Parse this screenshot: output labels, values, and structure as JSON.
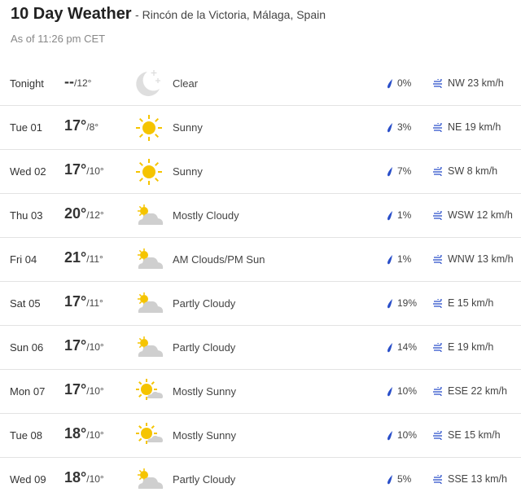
{
  "header": {
    "title": "10 Day Weather",
    "location": "- Rincón de la Victoria, Málaga, Spain",
    "as_of": "As of 11:26 pm CET"
  },
  "colors": {
    "accent": "#2a4fc9",
    "sun": "#f5c400",
    "cloud": "#c8c8c8"
  },
  "days": [
    {
      "day": "Tonight",
      "high": "--",
      "low": "/12°",
      "icon": "moon-clear-icon",
      "condition": "Clear",
      "precip": "0%",
      "wind": "NW 23 km/h"
    },
    {
      "day": "Tue 01",
      "high": "17°",
      "low": "/8°",
      "icon": "sun-icon",
      "condition": "Sunny",
      "precip": "3%",
      "wind": "NE 19 km/h"
    },
    {
      "day": "Wed 02",
      "high": "17°",
      "low": "/10°",
      "icon": "sun-icon",
      "condition": "Sunny",
      "precip": "7%",
      "wind": "SW 8 km/h"
    },
    {
      "day": "Thu 03",
      "high": "20°",
      "low": "/12°",
      "icon": "partly-cloudy-icon",
      "condition": "Mostly Cloudy",
      "precip": "1%",
      "wind": "WSW 12 km/h"
    },
    {
      "day": "Fri 04",
      "high": "21°",
      "low": "/11°",
      "icon": "partly-cloudy-icon",
      "condition": "AM Clouds/PM Sun",
      "precip": "1%",
      "wind": "WNW 13 km/h"
    },
    {
      "day": "Sat 05",
      "high": "17°",
      "low": "/11°",
      "icon": "partly-cloudy-icon",
      "condition": "Partly Cloudy",
      "precip": "19%",
      "wind": "E 15 km/h"
    },
    {
      "day": "Sun 06",
      "high": "17°",
      "low": "/10°",
      "icon": "partly-cloudy-icon",
      "condition": "Partly Cloudy",
      "precip": "14%",
      "wind": "E 19 km/h"
    },
    {
      "day": "Mon 07",
      "high": "17°",
      "low": "/10°",
      "icon": "mostly-sunny-icon",
      "condition": "Mostly Sunny",
      "precip": "10%",
      "wind": "ESE 22 km/h"
    },
    {
      "day": "Tue 08",
      "high": "18°",
      "low": "/10°",
      "icon": "mostly-sunny-icon",
      "condition": "Mostly Sunny",
      "precip": "10%",
      "wind": "SE 15 km/h"
    },
    {
      "day": "Wed 09",
      "high": "18°",
      "low": "/10°",
      "icon": "partly-cloudy-icon",
      "condition": "Partly Cloudy",
      "precip": "5%",
      "wind": "SSE 13 km/h"
    }
  ]
}
